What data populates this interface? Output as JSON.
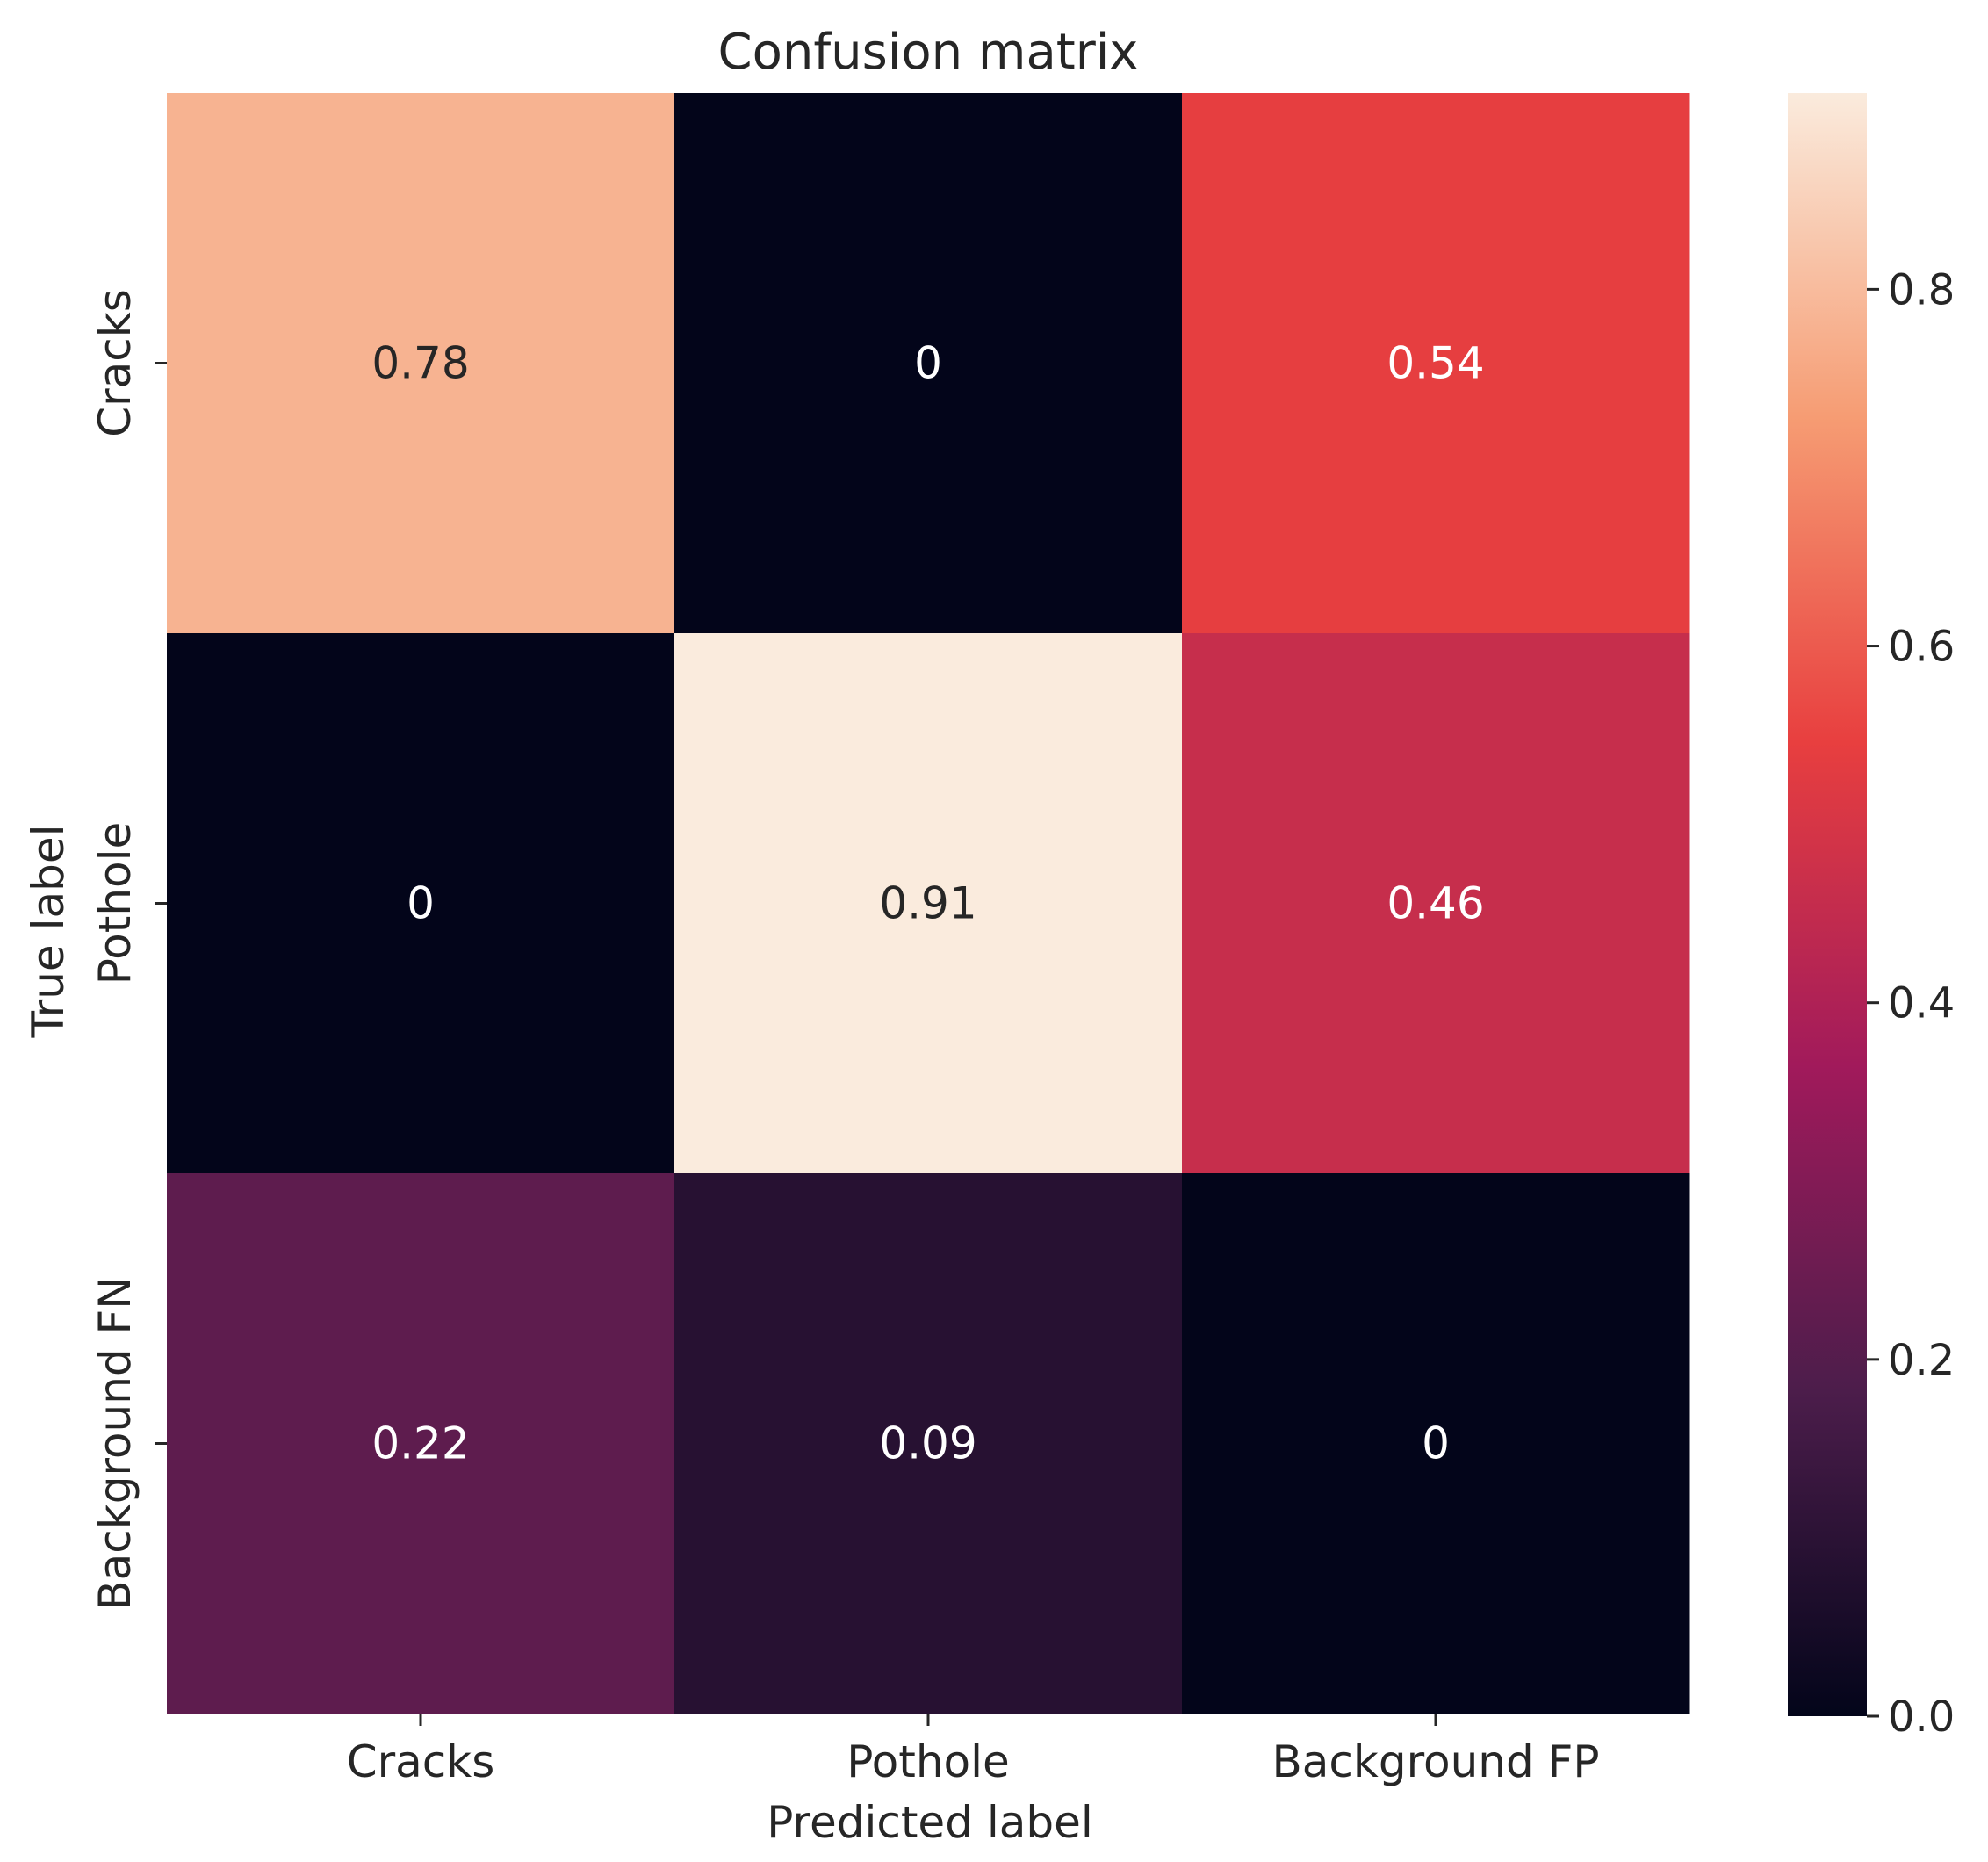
{
  "chart_data": {
    "type": "heatmap",
    "title": "Confusion matrix",
    "xlabel": "Predicted label",
    "ylabel": "True label",
    "x_categories": [
      "Cracks",
      "Pothole",
      "Background FP"
    ],
    "y_categories": [
      "Cracks",
      "Pothole",
      "Background FN"
    ],
    "values": [
      [
        0.78,
        0,
        0.54
      ],
      [
        0,
        0.91,
        0.46
      ],
      [
        0.22,
        0.09,
        0
      ]
    ],
    "cell_labels": [
      [
        "0.78",
        "0",
        "0.54"
      ],
      [
        "0",
        "0.91",
        "0.46"
      ],
      [
        "0.22",
        "0.09",
        "0"
      ]
    ],
    "colorbar": {
      "range": [
        0,
        0.91
      ],
      "ticks": [
        0.0,
        0.2,
        0.4,
        0.6,
        0.8
      ],
      "tick_labels": [
        "0.0",
        "0.2",
        "0.4",
        "0.6",
        "0.8"
      ],
      "colormap": "rocket",
      "colormap_stops": [
        "#03051a",
        "#4c1d4b",
        "#a11a5b",
        "#e83f3f",
        "#f69c73",
        "#faebdd"
      ]
    }
  }
}
